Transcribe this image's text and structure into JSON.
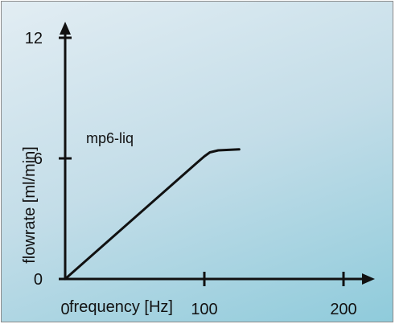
{
  "chart_data": {
    "type": "line",
    "title": "",
    "xlabel": "frequency [Hz]",
    "ylabel": "flowrate [ml/min]",
    "xlim": [
      0,
      200
    ],
    "ylim": [
      0,
      12
    ],
    "xticks": [
      0,
      100,
      200
    ],
    "yticks": [
      0,
      6,
      12
    ],
    "grid": false,
    "annotation": "mp6-liq",
    "series": [
      {
        "x": [
          0,
          95,
          100,
          104,
          110,
          125
        ],
        "y": [
          0,
          5.8,
          6.1,
          6.3,
          6.4,
          6.45
        ]
      }
    ]
  },
  "colors": {
    "line": "#111111",
    "axis": "#111111"
  }
}
